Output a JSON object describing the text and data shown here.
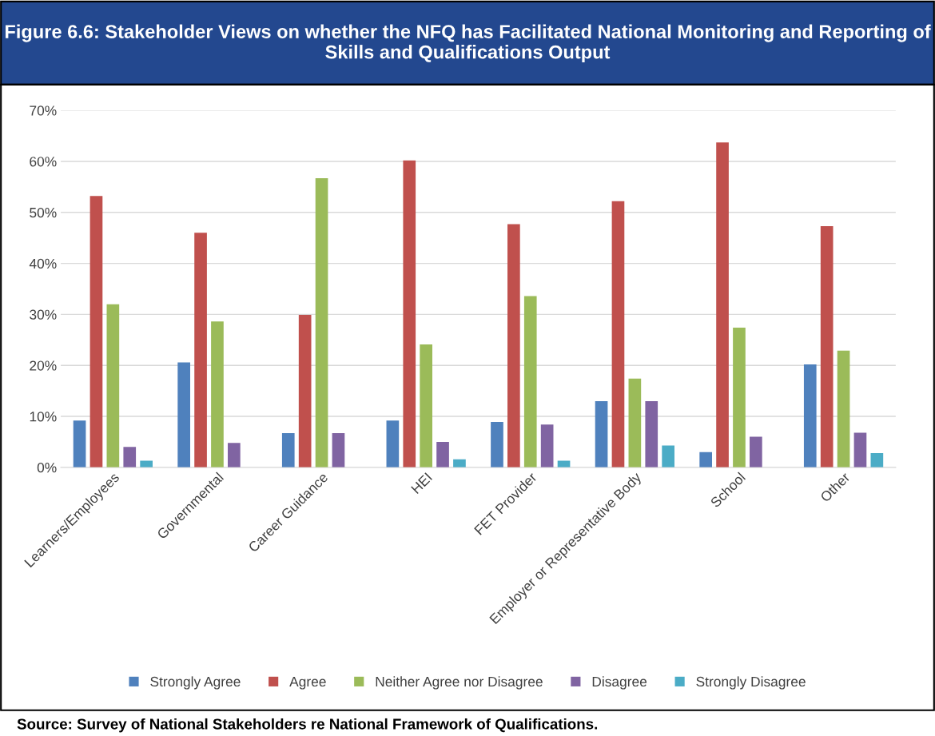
{
  "chart_data": {
    "type": "bar",
    "title": "Figure 6.6: Stakeholder Views on whether the NFQ has Facilitated National Monitoring and Reporting of Skills and Qualifications Output",
    "categories": [
      "Learners/Employees",
      "Governmental",
      "Career Guidance",
      "HEI",
      "FET Provider",
      "Employer or Representative Body",
      "School",
      "Other"
    ],
    "series": [
      {
        "name": "Strongly Agree",
        "color": "#4f81bd",
        "values": [
          9.2,
          20.6,
          6.7,
          9.2,
          8.9,
          13.0,
          3.0,
          20.2
        ]
      },
      {
        "name": "Agree",
        "color": "#c0504d",
        "values": [
          53.2,
          46.0,
          29.9,
          60.2,
          47.7,
          52.2,
          63.7,
          47.3
        ]
      },
      {
        "name": "Neither Agree nor Disagree",
        "color": "#9bbb59",
        "values": [
          32.0,
          28.6,
          56.7,
          24.1,
          33.6,
          17.4,
          27.4,
          22.9
        ]
      },
      {
        "name": "Disagree",
        "color": "#8064a2",
        "values": [
          4.0,
          4.8,
          6.7,
          5.0,
          8.4,
          13.0,
          6.0,
          6.8
        ]
      },
      {
        "name": "Strongly Disagree",
        "color": "#4bacc6",
        "values": [
          1.3,
          null,
          null,
          1.6,
          1.3,
          4.3,
          null,
          2.8
        ]
      }
    ],
    "ylim": [
      0,
      70
    ],
    "yticks": [
      {
        "value": 0,
        "label": "0%"
      },
      {
        "value": 10,
        "label": "10%"
      },
      {
        "value": 20,
        "label": "20%"
      },
      {
        "value": 30,
        "label": "30%"
      },
      {
        "value": 40,
        "label": "40%"
      },
      {
        "value": 50,
        "label": "50%"
      },
      {
        "value": 60,
        "label": "60%"
      },
      {
        "value": 70,
        "label": "70%"
      }
    ],
    "grid": "y",
    "legend": "bottom",
    "annotations": [
      "Source: Survey of National Stakeholders re National Framework of Qualifications."
    ]
  }
}
